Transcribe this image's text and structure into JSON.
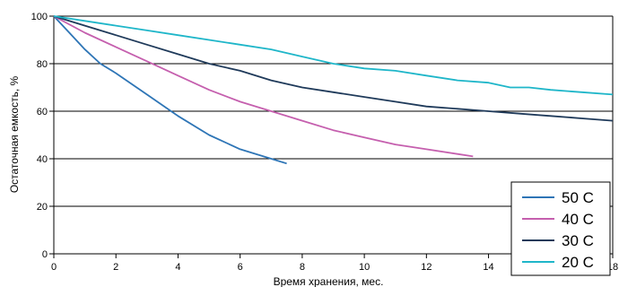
{
  "chart_data": {
    "type": "line",
    "title": "",
    "xlabel": "Время хранения, мес.",
    "ylabel": "Остаточная емкость, %",
    "xlim": [
      0,
      18
    ],
    "ylim": [
      0,
      100
    ],
    "xticks": [
      "0",
      "2",
      "4",
      "6",
      "8",
      "10",
      "12",
      "14",
      "16",
      "18"
    ],
    "yticks": [
      "0",
      "20",
      "40",
      "60",
      "80",
      "100"
    ],
    "grid": "horizontal",
    "legend_position": "bottom-right",
    "series": [
      {
        "name": "50 С",
        "color": "#2e75b6",
        "points": [
          [
            0,
            100
          ],
          [
            0.5,
            93
          ],
          [
            1,
            86
          ],
          [
            1.5,
            80
          ],
          [
            2,
            76
          ],
          [
            3,
            67
          ],
          [
            4,
            58
          ],
          [
            5,
            50
          ],
          [
            6,
            44
          ],
          [
            7,
            40
          ],
          [
            7.5,
            38
          ]
        ]
      },
      {
        "name": "40 С",
        "color": "#c55fae",
        "points": [
          [
            0,
            100
          ],
          [
            1,
            93
          ],
          [
            2,
            87
          ],
          [
            3,
            81
          ],
          [
            4,
            75
          ],
          [
            5,
            69
          ],
          [
            6,
            64
          ],
          [
            7,
            60
          ],
          [
            8,
            56
          ],
          [
            9,
            52
          ],
          [
            10,
            49
          ],
          [
            11,
            46
          ],
          [
            12,
            44
          ],
          [
            13,
            42
          ],
          [
            13.5,
            41
          ]
        ]
      },
      {
        "name": "30 С",
        "color": "#1f3a5a",
        "points": [
          [
            0,
            100
          ],
          [
            1,
            96
          ],
          [
            2,
            92
          ],
          [
            3,
            88
          ],
          [
            4,
            84
          ],
          [
            5,
            80
          ],
          [
            6,
            77
          ],
          [
            7,
            73
          ],
          [
            8,
            70
          ],
          [
            9,
            68
          ],
          [
            10,
            66
          ],
          [
            11,
            64
          ],
          [
            12,
            62
          ],
          [
            13,
            61
          ],
          [
            14,
            60
          ],
          [
            15,
            59
          ],
          [
            16,
            58
          ],
          [
            17,
            57
          ],
          [
            18,
            56
          ]
        ]
      },
      {
        "name": "20 С",
        "color": "#1fb6c9",
        "points": [
          [
            0,
            100
          ],
          [
            1,
            98
          ],
          [
            2,
            96
          ],
          [
            3,
            94
          ],
          [
            4,
            92
          ],
          [
            5,
            90
          ],
          [
            6,
            88
          ],
          [
            7,
            86
          ],
          [
            8,
            83
          ],
          [
            9,
            80
          ],
          [
            10,
            78
          ],
          [
            11,
            77
          ],
          [
            12,
            75
          ],
          [
            13,
            73
          ],
          [
            14,
            72
          ],
          [
            14.7,
            70
          ],
          [
            15.3,
            70
          ],
          [
            16,
            69
          ],
          [
            17,
            68
          ],
          [
            18,
            67
          ]
        ]
      }
    ]
  }
}
